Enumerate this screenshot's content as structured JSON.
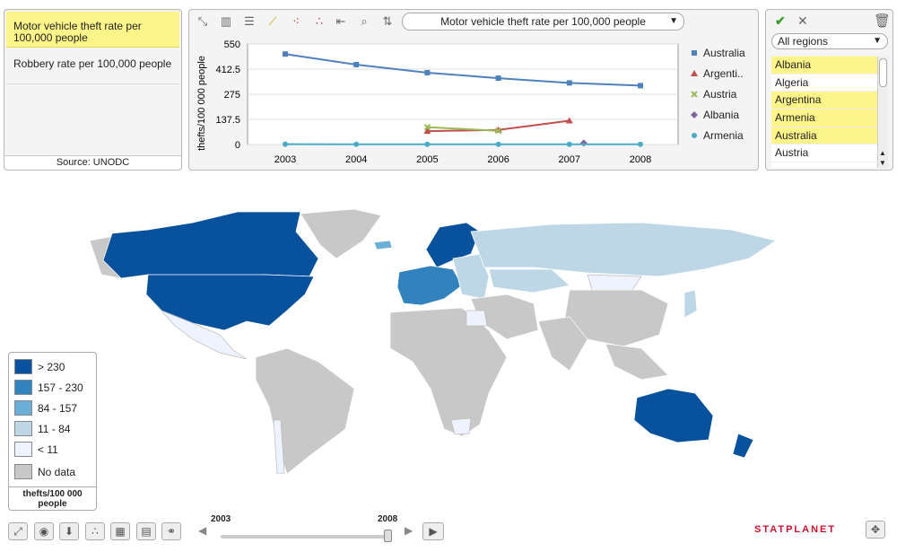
{
  "indicators": {
    "items": [
      {
        "label": "Motor vehicle theft rate per 100,000 people",
        "selected": true
      },
      {
        "label": "Robbery rate per 100,000 people",
        "selected": false
      }
    ],
    "source": "Source: UNODC"
  },
  "chart": {
    "selector_label": "Motor vehicle theft rate per 100,000 people",
    "toolbar_icons": [
      "scatter-connect-icon",
      "bar-chart-icon",
      "horizontal-bar-icon",
      "line-chart-icon",
      "scatter-icon",
      "scatter-small-icon",
      "list-indent-icon",
      "search-icon",
      "sort-icon"
    ]
  },
  "chart_data": {
    "type": "line",
    "x": [
      2003,
      2004,
      2005,
      2006,
      2007,
      2008
    ],
    "ylabel": "thefts/100 000 people",
    "yticks": [
      "550",
      "412.5",
      "275",
      "137.5",
      "0"
    ],
    "ylim": [
      0,
      550
    ],
    "grid": true,
    "legend_position": "right",
    "series": [
      {
        "name": "Australia",
        "color": "#4f81bd",
        "marker": "square",
        "values": [
          495,
          437,
          393,
          363,
          337,
          322
        ]
      },
      {
        "name": "Argenti..",
        "color": "#c0504d",
        "marker": "triangle",
        "values": [
          null,
          null,
          73,
          80,
          130,
          null
        ]
      },
      {
        "name": "Austria",
        "color": "#9bbb59",
        "marker": "x",
        "values": [
          null,
          null,
          95,
          75,
          null,
          null
        ]
      },
      {
        "name": "Albania",
        "color": "#8064a2",
        "marker": "diamond",
        "values": [
          null,
          null,
          null,
          null,
          8,
          null
        ]
      },
      {
        "name": "Armenia",
        "color": "#4bacc6",
        "marker": "circle",
        "values": [
          2,
          1,
          1,
          1,
          1,
          1
        ]
      }
    ]
  },
  "regions": {
    "selected": "All regions",
    "countries": [
      {
        "name": "Albania",
        "selected": true
      },
      {
        "name": "Algeria",
        "selected": false
      },
      {
        "name": "Argentina",
        "selected": true
      },
      {
        "name": "Armenia",
        "selected": true
      },
      {
        "name": "Australia",
        "selected": true
      },
      {
        "name": "Austria",
        "selected": false
      }
    ]
  },
  "legend": {
    "items": [
      {
        "label": "> 230",
        "color": "#08519c"
      },
      {
        "label": "157 - 230",
        "color": "#3182bd"
      },
      {
        "label": "84 - 157",
        "color": "#6baed6"
      },
      {
        "label": "11 - 84",
        "color": "#bdd7e7"
      },
      {
        "label": "< 11",
        "color": "#eff3ff"
      },
      {
        "label": "No data",
        "color": "#c8c8c8"
      }
    ],
    "unit": "thefts/100 000 people"
  },
  "timeline": {
    "start": "2003",
    "end": "2008"
  },
  "brand": "STATPLANET"
}
